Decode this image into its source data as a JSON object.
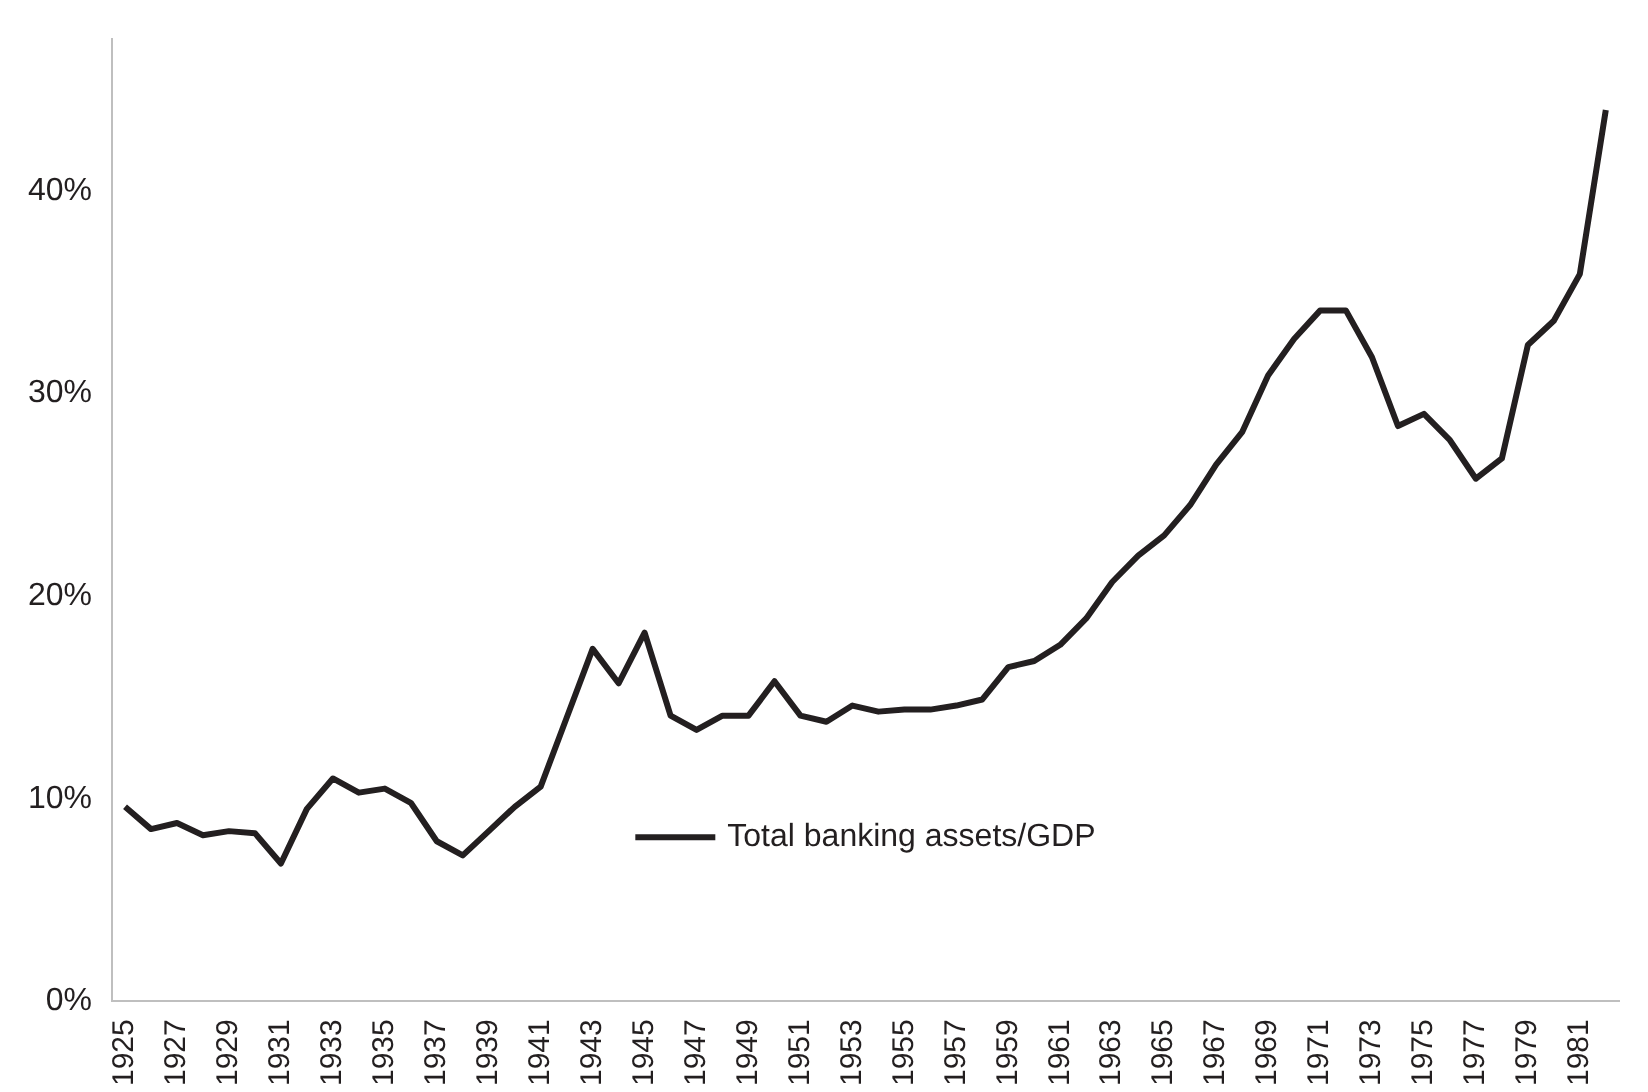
{
  "chart_data": {
    "type": "line",
    "categories": [
      "1925",
      null,
      "1927",
      null,
      "1929",
      null,
      "1931",
      null,
      "1933",
      null,
      "1935",
      null,
      "1937",
      null,
      "1939",
      null,
      "1941",
      null,
      "1943",
      null,
      "1945",
      null,
      "1947",
      null,
      "1949",
      null,
      "1951",
      null,
      "1953",
      null,
      "1955",
      null,
      "1957",
      null,
      "1959",
      null,
      "1961",
      null,
      "1963",
      null,
      "1965",
      null,
      "1967",
      null,
      "1969",
      null,
      "1971",
      null,
      "1973",
      null,
      "1975",
      null,
      "1977",
      null,
      "1979",
      null,
      "1981",
      null
    ],
    "series": [
      {
        "name": "Total banking assets/GDP",
        "color": "#231f20",
        "values": [
          9.6,
          8.5,
          8.8,
          8.2,
          8.4,
          8.3,
          6.8,
          9.5,
          11.0,
          10.3,
          10.5,
          9.8,
          7.9,
          7.2,
          8.4,
          9.6,
          10.6,
          14.0,
          17.4,
          15.7,
          18.2,
          14.1,
          13.4,
          14.1,
          14.1,
          15.8,
          14.1,
          13.8,
          14.6,
          14.3,
          14.4,
          14.4,
          14.6,
          14.9,
          16.5,
          16.8,
          17.6,
          18.9,
          20.7,
          22.0,
          23.0,
          24.5,
          26.5,
          28.1,
          30.9,
          32.7,
          34.1,
          34.1,
          31.8,
          28.4,
          29.0,
          27.7,
          25.8,
          26.8,
          32.4,
          33.6,
          35.9,
          44.0
        ]
      }
    ],
    "ylim": [
      0,
      47.5
    ],
    "yticks": [
      {
        "value": 0,
        "label": "0%"
      },
      {
        "value": 10,
        "label": "10%"
      },
      {
        "value": 20,
        "label": "20%"
      },
      {
        "value": 30,
        "label": "30%"
      },
      {
        "value": 40,
        "label": "40%"
      }
    ],
    "grid": false,
    "legend": "bottom",
    "marker": "none",
    "line_style": "solid"
  }
}
